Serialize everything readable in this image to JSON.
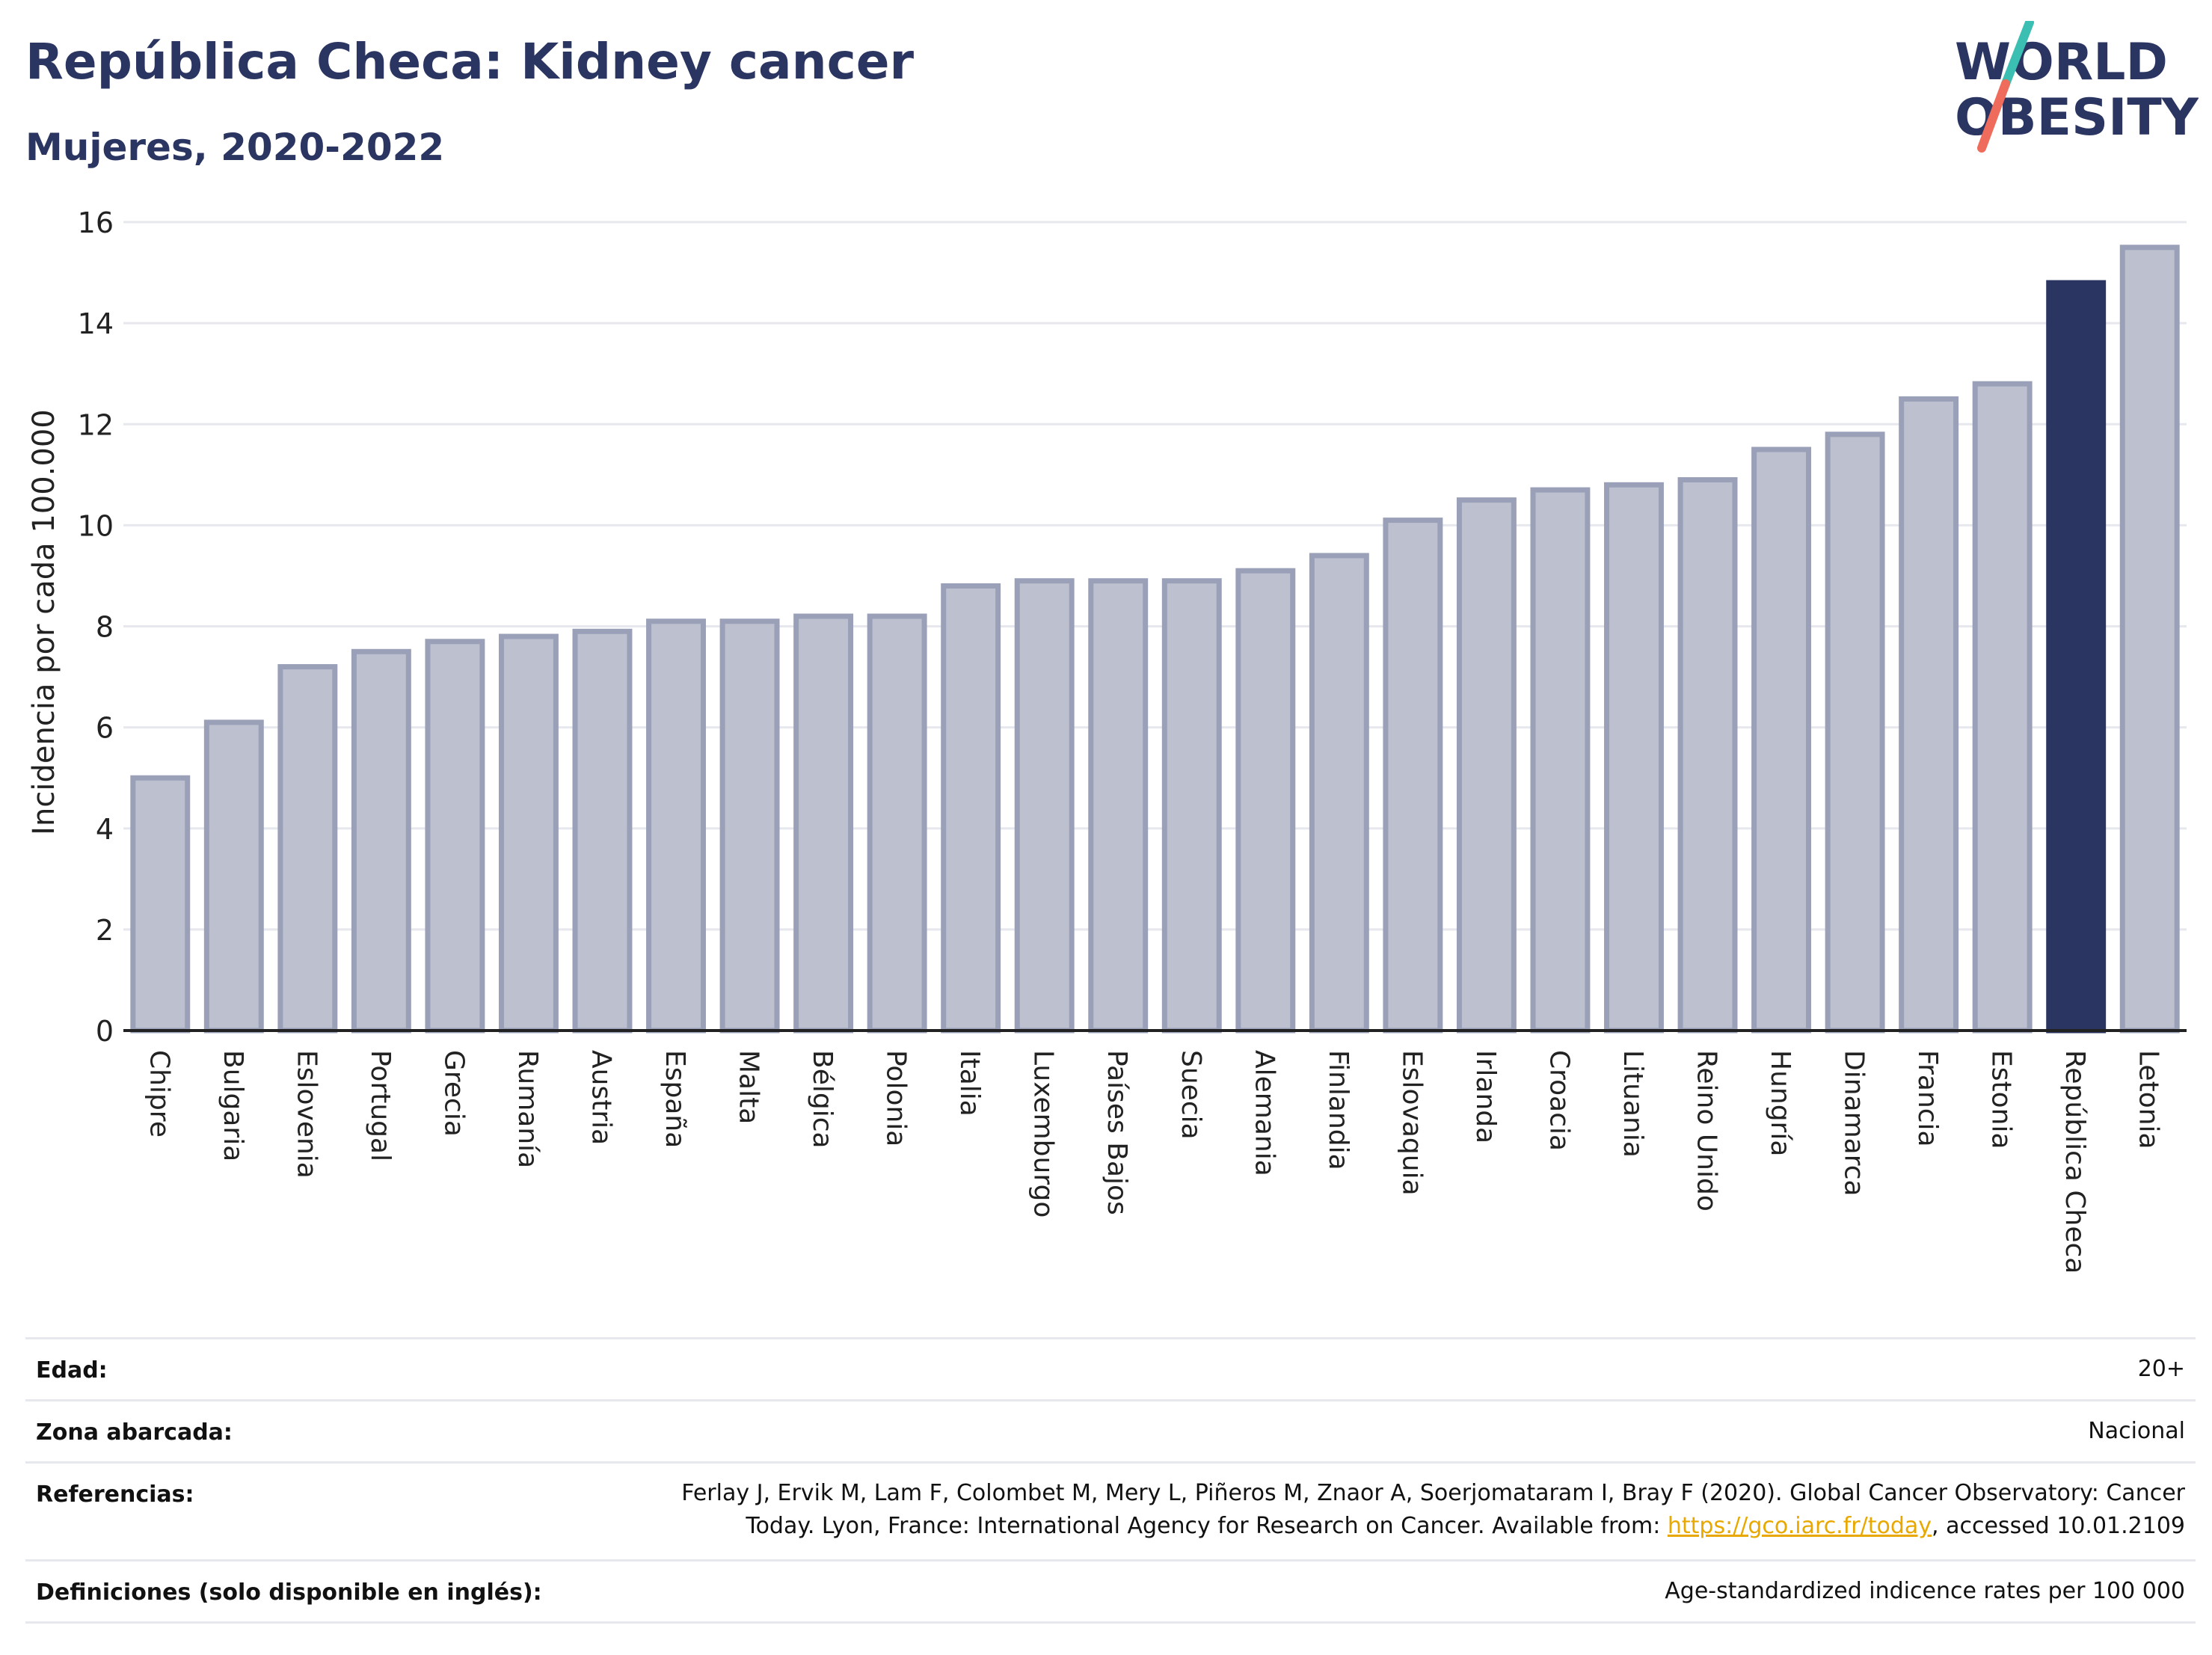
{
  "title": "República Checa: Kidney cancer",
  "subtitle": "Mujeres, 2020-2022",
  "logo": {
    "line1": "WORLD",
    "line2": "OBESITY"
  },
  "colors": {
    "bar": "#bcc0cf",
    "bar_border": "#9aa0b8",
    "highlight": "#2b3561",
    "grid": "#e6e8ee",
    "axis": "#222222"
  },
  "chart_data": {
    "type": "bar",
    "ylabel": "Incidencia por cada 100.000",
    "ylim": [
      0,
      16
    ],
    "yticks": [
      "0",
      "2",
      "4",
      "6",
      "8",
      "10",
      "12",
      "14",
      "16"
    ],
    "highlight": "República Checa",
    "categories": [
      "Chipre",
      "Bulgaria",
      "Eslovenia",
      "Portugal",
      "Grecia",
      "Rumanía",
      "Austria",
      "España",
      "Malta",
      "Bélgica",
      "Polonia",
      "Italia",
      "Luxemburgo",
      "Países Bajos",
      "Suecia",
      "Alemania",
      "Finlandia",
      "Eslovaquia",
      "Irlanda",
      "Croacia",
      "Lituania",
      "Reino Unido",
      "Hungría",
      "Dinamarca",
      "Francia",
      "Estonia",
      "República Checa",
      "Letonia"
    ],
    "values": [
      5.0,
      6.1,
      7.2,
      7.5,
      7.7,
      7.8,
      7.9,
      8.1,
      8.1,
      8.2,
      8.2,
      8.8,
      8.9,
      8.9,
      8.9,
      9.1,
      9.4,
      10.1,
      10.5,
      10.7,
      10.8,
      10.9,
      11.5,
      11.8,
      12.5,
      12.8,
      14.8,
      15.5
    ]
  },
  "meta": {
    "age_label": "Edad:",
    "age_value": "20+",
    "zone_label": "Zona abarcada:",
    "zone_value": "Nacional",
    "refs_label": "Referencias:",
    "refs_line1": "Ferlay J, Ervik M, Lam F, Colombet M, Mery L, Piñeros M, Znaor A, Soerjomataram I, Bray F (2020). Global Cancer Observatory: Cancer",
    "refs_line2_pre": "Today. Lyon, France: International Agency for Research on Cancer. Available from: ",
    "refs_link": "https://gco.iarc.fr/today",
    "refs_line2_post": ", accessed 10.01.2109",
    "defs_label": "Definiciones (solo disponible en inglés):",
    "defs_value": "Age-standardized indicence rates per 100 000"
  }
}
